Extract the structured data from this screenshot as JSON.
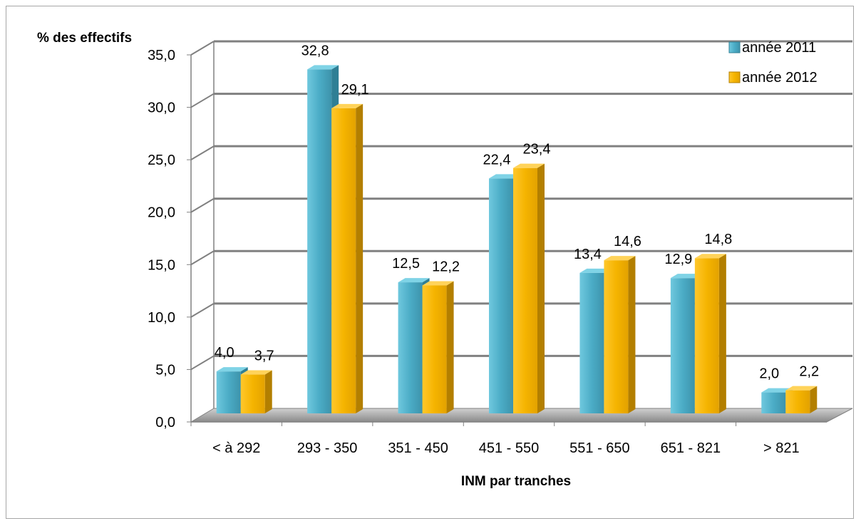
{
  "chart_data": {
    "type": "bar",
    "title": "",
    "ylabel": "% des effectifs",
    "xlabel": "INM par tranches",
    "categories": [
      "< à 292",
      "293 - 350",
      "351 - 450",
      "451 - 550",
      "551 - 650",
      "651 - 821",
      "> 821"
    ],
    "series": [
      {
        "name": "année 2011",
        "color": "#4bacc6",
        "values": [
          4.0,
          32.8,
          12.5,
          22.4,
          13.4,
          12.9,
          2.0
        ],
        "labels": [
          "4,0",
          "32,8",
          "12,5",
          "22,4",
          "13,4",
          "12,9",
          "2,0"
        ]
      },
      {
        "name": "année 2012",
        "color": "#f5b400",
        "values": [
          3.7,
          29.1,
          12.2,
          23.4,
          14.6,
          14.8,
          2.2
        ],
        "labels": [
          "3,7",
          "29,1",
          "12,2",
          "23,4",
          "14,6",
          "14,8",
          "2,2"
        ]
      }
    ],
    "yticks": [
      "0,0",
      "5,0",
      "10,0",
      "15,0",
      "20,0",
      "25,0",
      "30,0",
      "35,0"
    ],
    "ylim": [
      0,
      35
    ],
    "grid": true,
    "legend_position": "top-right",
    "style": "3d-columns"
  }
}
